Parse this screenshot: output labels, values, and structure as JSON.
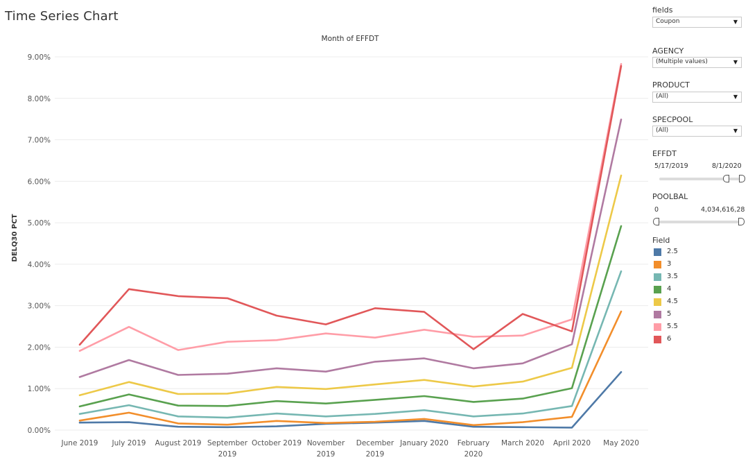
{
  "page": {
    "title": "Time Series Chart"
  },
  "sidebar": {
    "fields": {
      "label": "fields",
      "value": "Coupon"
    },
    "agency": {
      "label": "AGENCY",
      "value": "(Multiple values)"
    },
    "product": {
      "label": "PRODUCT",
      "value": "(All)"
    },
    "specpool": {
      "label": "SPECPOOL",
      "value": "(All)"
    },
    "effdt": {
      "label": "EFFDT",
      "min": "5/17/2019",
      "max": "8/1/2020",
      "low_fraction": 0.86,
      "high_fraction": 1.0
    },
    "poolbal": {
      "label": "POOLBAL",
      "min": "0",
      "max": "4,034,616,28",
      "low_fraction": 0.0,
      "high_fraction": 1.0
    },
    "legend": {
      "title": "Field",
      "items": [
        {
          "label": "2.5",
          "color": "#4e79a7"
        },
        {
          "label": "3",
          "color": "#f28e2b"
        },
        {
          "label": "3.5",
          "color": "#76b7b2"
        },
        {
          "label": "4",
          "color": "#59a14f"
        },
        {
          "label": "4.5",
          "color": "#edc948"
        },
        {
          "label": "5",
          "color": "#b07aa1"
        },
        {
          "label": "5.5",
          "color": "#ff9da7"
        },
        {
          "label": "6",
          "color": "#e15759"
        }
      ]
    }
  },
  "chart_data": {
    "type": "line",
    "title": "Month of EFFDT",
    "ylabel": "DELQ30 PCT",
    "xlabel": "",
    "ylim": [
      0,
      9
    ],
    "y_ticks": [
      "0.00%",
      "1.00%",
      "2.00%",
      "3.00%",
      "4.00%",
      "5.00%",
      "6.00%",
      "7.00%",
      "8.00%",
      "9.00%"
    ],
    "grid": true,
    "categories": [
      [
        "June 2019"
      ],
      [
        "July 2019"
      ],
      [
        "August 2019"
      ],
      [
        "September",
        "2019"
      ],
      [
        "October 2019"
      ],
      [
        "November",
        "2019"
      ],
      [
        "December",
        "2019"
      ],
      [
        "January 2020"
      ],
      [
        "February",
        "2020"
      ],
      [
        "March 2020"
      ],
      [
        "April 2020"
      ],
      [
        "May 2020"
      ]
    ],
    "series": [
      {
        "name": "2.5",
        "color": "#4e79a7",
        "values": [
          0.18,
          0.19,
          0.08,
          0.07,
          0.09,
          0.15,
          0.18,
          0.22,
          0.08,
          0.07,
          0.06,
          1.4
        ]
      },
      {
        "name": "3",
        "color": "#f28e2b",
        "values": [
          0.23,
          0.42,
          0.16,
          0.13,
          0.22,
          0.17,
          0.2,
          0.27,
          0.12,
          0.19,
          0.32,
          2.86
        ]
      },
      {
        "name": "3.5",
        "color": "#76b7b2",
        "values": [
          0.39,
          0.6,
          0.33,
          0.3,
          0.4,
          0.33,
          0.39,
          0.48,
          0.33,
          0.4,
          0.58,
          3.83
        ]
      },
      {
        "name": "4",
        "color": "#59a14f",
        "values": [
          0.57,
          0.86,
          0.59,
          0.58,
          0.7,
          0.64,
          0.73,
          0.82,
          0.68,
          0.76,
          1.01,
          4.92
        ]
      },
      {
        "name": "4.5",
        "color": "#edc948",
        "values": [
          0.84,
          1.16,
          0.87,
          0.88,
          1.04,
          0.99,
          1.1,
          1.21,
          1.05,
          1.17,
          1.5,
          6.14
        ]
      },
      {
        "name": "5",
        "color": "#b07aa1",
        "values": [
          1.28,
          1.69,
          1.33,
          1.36,
          1.49,
          1.41,
          1.65,
          1.73,
          1.49,
          1.61,
          2.07,
          7.49
        ]
      },
      {
        "name": "5.5",
        "color": "#ff9da7",
        "values": [
          1.91,
          2.49,
          1.93,
          2.13,
          2.17,
          2.33,
          2.23,
          2.42,
          2.25,
          2.28,
          2.67,
          8.83
        ]
      },
      {
        "name": "6",
        "color": "#e15759",
        "values": [
          2.06,
          3.4,
          3.23,
          3.18,
          2.76,
          2.55,
          2.94,
          2.85,
          1.95,
          2.8,
          2.38,
          8.78
        ]
      }
    ]
  }
}
